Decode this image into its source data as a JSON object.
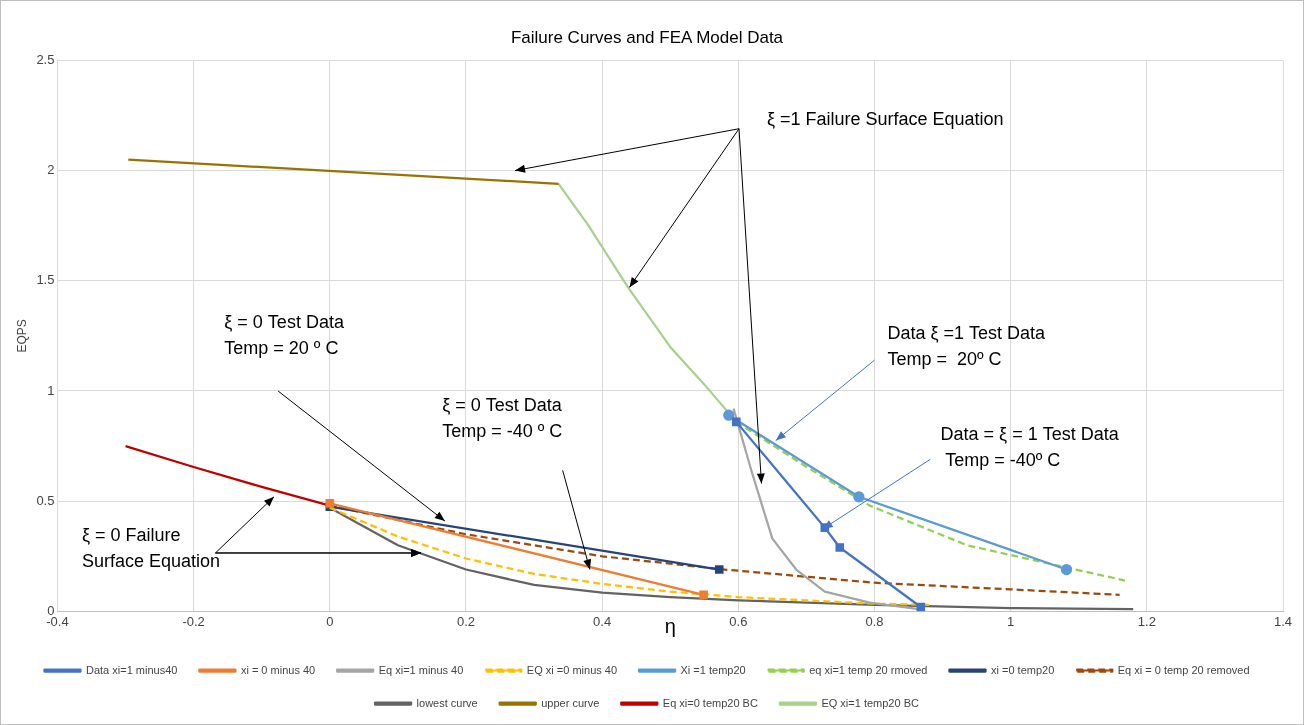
{
  "chart_data": {
    "type": "line",
    "title": "Failure Curves and FEA Model Data",
    "xlabel": "η",
    "ylabel": "EQPS",
    "xlim": [
      -0.4,
      1.4
    ],
    "xticks": [
      -0.4,
      -0.2,
      0,
      0.2,
      0.4,
      0.6,
      0.8,
      1,
      1.2,
      1.4
    ],
    "ylim": [
      0,
      2.5
    ],
    "yticks": [
      0,
      0.5,
      1,
      1.5,
      2,
      2.5
    ],
    "grid": true,
    "legend": "bottom",
    "series": [
      {
        "name": "Data xi=1 minus40",
        "color": "#4472c4",
        "marker": "square",
        "x": [
          0.597,
          0.727,
          0.749,
          0.868
        ],
        "values": [
          0.86,
          0.38,
          0.29,
          0.02
        ]
      },
      {
        "name": "xi = 0 minus 40",
        "color": "#ed7d31",
        "marker": "square",
        "x": [
          0,
          0.549
        ],
        "values": [
          0.49,
          0.075
        ]
      },
      {
        "name": "Eq xi=1 minus 40",
        "color": "#a5a5a5",
        "marker": "none",
        "x": [
          0.593,
          0.62,
          0.65,
          0.685,
          0.727,
          0.793,
          0.865
        ],
        "values": [
          0.92,
          0.63,
          0.33,
          0.19,
          0.09,
          0.04,
          0.01
        ]
      },
      {
        "name": "EQ xi =0 minus 40",
        "color": "#ffc000",
        "marker": "none",
        "line_style": "dashed",
        "x": [
          0,
          0.1,
          0.2,
          0.3,
          0.4,
          0.5,
          0.6,
          0.7,
          0.8,
          0.88
        ],
        "values": [
          0.47,
          0.34,
          0.24,
          0.17,
          0.125,
          0.09,
          0.065,
          0.05,
          0.035,
          0.03
        ]
      },
      {
        "name": "Xi =1 temp20",
        "color": "#5b9bd5",
        "marker": "circle",
        "x": [
          0.586,
          0.777,
          1.082
        ],
        "values": [
          0.89,
          0.52,
          0.19
        ]
      },
      {
        "name": "eq xi=1 temp 20 rmoved",
        "color": "#92d050",
        "marker": "none",
        "line_style": "dashed",
        "x": [
          0.597,
          0.698,
          0.793,
          0.936,
          1.168
        ],
        "values": [
          0.86,
          0.66,
          0.48,
          0.3,
          0.14
        ]
      },
      {
        "name": "xi =0 temp20",
        "color": "#264478",
        "marker": "square",
        "x": [
          0,
          0.572
        ],
        "values": [
          0.475,
          0.19
        ]
      },
      {
        "name": "Eq xi = 0 temp 20 removed",
        "color": "#9e480e",
        "marker": "none",
        "line_style": "dashed",
        "x": [
          0,
          0.2,
          0.4,
          0.58,
          0.8,
          1.0,
          1.16
        ],
        "values": [
          0.48,
          0.35,
          0.25,
          0.19,
          0.13,
          0.1,
          0.075
        ]
      },
      {
        "name": "lowest curve",
        "color": "#636363",
        "marker": "none",
        "x": [
          0,
          0.1,
          0.2,
          0.3,
          0.4,
          0.5,
          0.6,
          0.8,
          1.0,
          1.18
        ],
        "values": [
          0.47,
          0.3,
          0.19,
          0.12,
          0.085,
          0.065,
          0.05,
          0.03,
          0.015,
          0.01
        ]
      },
      {
        "name": "upper curve",
        "color": "#997300",
        "marker": "none",
        "x": [
          -0.296,
          0.336
        ],
        "values": [
          2.05,
          1.94
        ]
      },
      {
        "name": "Eq xi=0 temp20 BC",
        "color": "#c00000",
        "marker": "none",
        "x": [
          -0.3,
          -0.2,
          -0.1,
          0
        ],
        "values": [
          0.75,
          0.655,
          0.565,
          0.48
        ]
      },
      {
        "name": "EQ xi=1 temp20 BC",
        "color": "#a9d18e",
        "marker": "none",
        "x": [
          0.336,
          0.38,
          0.438,
          0.5,
          0.55,
          0.597
        ],
        "values": [
          1.94,
          1.75,
          1.47,
          1.2,
          1.03,
          0.86
        ]
      }
    ],
    "annotations": [
      "ξ =1 Failure Surface Equation",
      "ξ = 0 Test Data\nTemp = 20 º C",
      "ξ = 0 Test Data\nTemp = -40 º C",
      {
        "text": "ξ = 0 Failure\nSurface Equation",
        "x": 0.134,
        "y": 0.265
      },
      {
        "text": "Data ξ =1 Test Data\nTemp =  20º C",
        "x": 0.655,
        "y": 0.775
      },
      {
        "text": "Data = ξ = 1 Test Data\n Temp = -40º C",
        "x": 0.724,
        "y": 0.374
      }
    ]
  }
}
